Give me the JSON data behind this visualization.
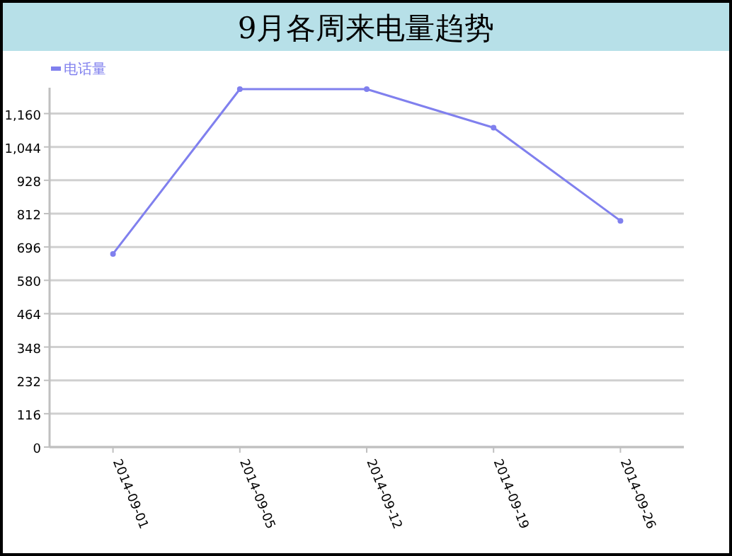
{
  "chart_data": {
    "type": "line",
    "title": "9月各周来电量趋势",
    "categories": [
      "2014-09-01",
      "2014-09-05",
      "2014-09-12",
      "2014-09-19",
      "2014-09-26"
    ],
    "series": [
      {
        "name": "电话量",
        "color": "#8080ee",
        "values": [
          672,
          1245,
          1245,
          1111,
          787
        ]
      }
    ],
    "ylim": [
      0,
      1250
    ],
    "yticks": [
      0,
      116,
      232,
      348,
      464,
      580,
      696,
      812,
      928,
      {
        "value": 1044,
        "label": "1,044"
      },
      {
        "value": 1160,
        "label": "1,160"
      }
    ],
    "grid": "y",
    "legend": "top left",
    "marker": "circle",
    "line_style": "solid"
  }
}
